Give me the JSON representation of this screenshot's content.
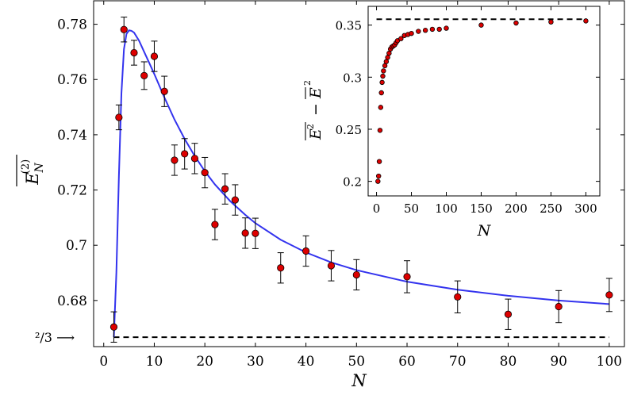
{
  "chart_data": [
    {
      "type": "scatter",
      "xlabel": "N",
      "ylabel": "E_N^(2) (overlined)",
      "xlim": [
        -2,
        103
      ],
      "ylim": [
        0.6633,
        0.7885
      ],
      "xticks": [
        0,
        10,
        20,
        30,
        40,
        50,
        60,
        70,
        80,
        90,
        100
      ],
      "yticks": [
        0.68,
        0.7,
        0.72,
        0.74,
        0.76,
        0.78
      ],
      "ytick_labels": [
        "0.68",
        "0.7",
        "0.72",
        "0.74",
        "0.76",
        "0.78"
      ],
      "grid": false,
      "series": [
        {
          "kind": "points_with_error_bars",
          "marker_color": "#dd0000",
          "x": [
            2,
            3,
            4,
            6,
            8,
            10,
            12,
            14,
            16,
            18,
            20,
            22,
            24,
            26,
            28,
            30,
            35,
            40,
            45,
            50,
            60,
            70,
            80,
            90,
            100
          ],
          "y": [
            0.6704,
            0.7463,
            0.7781,
            0.7697,
            0.7614,
            0.7684,
            0.7557,
            0.7308,
            0.7331,
            0.7314,
            0.7263,
            0.7075,
            0.7204,
            0.7164,
            0.7044,
            0.7043,
            0.6918,
            0.6979,
            0.6926,
            0.6893,
            0.6886,
            0.6813,
            0.675,
            0.6778,
            0.682
          ],
          "err": [
            0.0055,
            0.0045,
            0.0045,
            0.0045,
            0.005,
            0.0055,
            0.0055,
            0.0055,
            0.0055,
            0.0055,
            0.0055,
            0.0055,
            0.0055,
            0.0055,
            0.0055,
            0.0055,
            0.0055,
            0.0055,
            0.0055,
            0.0055,
            0.0058,
            0.0058,
            0.0055,
            0.0058,
            0.006
          ]
        },
        {
          "kind": "fit_curve",
          "color": "#3333ee",
          "x": [
            2.0,
            2.5,
            3.0,
            3.5,
            4.0,
            4.5,
            5.0,
            5.5,
            6.0,
            7,
            8,
            9,
            10,
            12,
            14,
            16,
            18,
            20,
            22,
            25,
            28,
            30,
            35,
            40,
            45,
            50,
            60,
            70,
            80,
            90,
            100
          ],
          "y": [
            0.6667,
            0.69,
            0.725,
            0.755,
            0.771,
            0.7765,
            0.7778,
            0.7776,
            0.777,
            0.774,
            0.77,
            0.766,
            0.762,
            0.7535,
            0.7455,
            0.7385,
            0.7323,
            0.7268,
            0.722,
            0.716,
            0.711,
            0.708,
            0.702,
            0.6974,
            0.6938,
            0.691,
            0.6868,
            0.6839,
            0.6817,
            0.68,
            0.6787
          ]
        },
        {
          "kind": "reference_line",
          "style": "dashed",
          "color": "#000000",
          "y": 0.6667,
          "x_range": [
            2,
            100
          ]
        }
      ],
      "annotations": [
        {
          "text": "²/3 ⟶",
          "at_y": 0.6667
        }
      ]
    },
    {
      "type": "scatter",
      "role": "inset",
      "xlabel": "N",
      "ylabel": "E² (overlined) − E (overlined)²",
      "xlim": [
        -12,
        320
      ],
      "ylim": [
        0.186,
        0.368
      ],
      "xticks": [
        0,
        50,
        100,
        150,
        200,
        250,
        300
      ],
      "yticks": [
        0.2,
        0.25,
        0.3,
        0.35
      ],
      "ytick_labels": [
        "0.2",
        "0.25",
        "0.3",
        "0.35"
      ],
      "grid": false,
      "series": [
        {
          "kind": "points",
          "marker_color": "#dd0000",
          "x": [
            2,
            3,
            4,
            5,
            6,
            7,
            8,
            9,
            10,
            12,
            14,
            16,
            18,
            20,
            22,
            24,
            26,
            28,
            30,
            35,
            40,
            45,
            50,
            60,
            70,
            80,
            90,
            100,
            150,
            200,
            250,
            300
          ],
          "y": [
            0.2,
            0.205,
            0.219,
            0.249,
            0.271,
            0.285,
            0.295,
            0.301,
            0.306,
            0.311,
            0.315,
            0.319,
            0.323,
            0.327,
            0.329,
            0.33,
            0.331,
            0.333,
            0.335,
            0.337,
            0.34,
            0.341,
            0.342,
            0.344,
            0.345,
            0.346,
            0.346,
            0.347,
            0.35,
            0.352,
            0.353,
            0.354
          ]
        },
        {
          "kind": "reference_line",
          "style": "dashed",
          "color": "#000000",
          "y": 0.3556,
          "x_range": [
            0,
            300
          ]
        }
      ]
    }
  ]
}
